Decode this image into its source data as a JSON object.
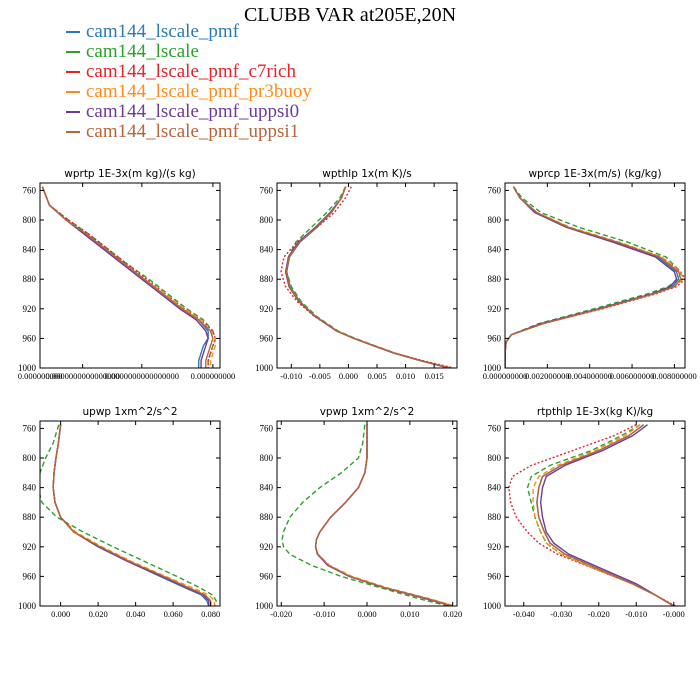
{
  "title": "CLUBB VAR at205E,20N",
  "legend": [
    {
      "label": "cam144_lscale_pmf",
      "color": "#2a7ab6",
      "dash": "solid"
    },
    {
      "label": "cam144_lscale",
      "color": "#2ca02c",
      "dash": "dashed"
    },
    {
      "label": "cam144_lscale_pmf_c7rich",
      "color": "#e3242b",
      "dash": "dotted"
    },
    {
      "label": "cam144_lscale_pmf_pr3buoy",
      "color": "#ff8c1a",
      "dash": "dashed"
    },
    {
      "label": "cam144_lscale_pmf_uppsi0",
      "color": "#6a3d9a",
      "dash": "solid"
    },
    {
      "label": "cam144_lscale_pmf_uppsi1",
      "color": "#b5653a",
      "dash": "solid"
    }
  ],
  "chart_data": [
    {
      "type": "line",
      "title": "wprtp  1E-3x(m kg)/(s kg)",
      "xlim": [
        -3e-10,
        7.3e-09
      ],
      "ylim": [
        1000,
        750
      ],
      "yticks": [
        760,
        800,
        840,
        880,
        920,
        960,
        1000
      ],
      "xticks": [
        {
          "v": -3e-10,
          "label": "0.000000000"
        },
        {
          "v": 1.5e-09,
          "label": "0.0000000000000000"
        },
        {
          "v": 4e-09,
          "label": "0.0000000000000000"
        },
        {
          "v": 7e-09,
          "label": "0.000000000"
        }
      ],
      "y": [
        755,
        780,
        800,
        820,
        840,
        860,
        880,
        900,
        920,
        935,
        950,
        960,
        970,
        980,
        990,
        1000
      ],
      "series": [
        {
          "values": [
            -2e-10,
            1e-10,
            8e-10,
            1.7e-09,
            2.5e-09,
            3.3e-09,
            4.1e-09,
            4.9e-09,
            5.7e-09,
            6.4e-09,
            6.8e-09,
            6.8e-09,
            6.6e-09,
            6.5e-09,
            6.4e-09,
            6.4e-09
          ]
        },
        {
          "values": [
            -2e-10,
            1e-10,
            9e-10,
            1.8e-09,
            2.6e-09,
            3.4e-09,
            4.3e-09,
            5.1e-09,
            5.9e-09,
            6.6e-09,
            7e-09,
            7.1e-09,
            7e-09,
            6.9e-09,
            6.8e-09,
            6.8e-09
          ]
        },
        {
          "values": [
            -2e-10,
            1e-10,
            9e-10,
            1.8e-09,
            2.6e-09,
            3.4e-09,
            4.2e-09,
            5e-09,
            5.8e-09,
            6.5e-09,
            7e-09,
            7.1e-09,
            7e-09,
            6.9e-09,
            6.8e-09,
            6.8e-09
          ]
        },
        {
          "values": [
            -2e-10,
            1e-10,
            8e-10,
            1.7e-09,
            2.5e-09,
            3.3e-09,
            4.1e-09,
            5e-09,
            5.8e-09,
            6.5e-09,
            6.9e-09,
            7.1e-09,
            7.1e-09,
            7e-09,
            6.9e-09,
            6.9e-09
          ]
        },
        {
          "values": [
            -2e-10,
            1e-10,
            8e-10,
            1.6e-09,
            2.4e-09,
            3.2e-09,
            4e-09,
            4.8e-09,
            5.6e-09,
            6.3e-09,
            6.7e-09,
            6.8e-09,
            6.7e-09,
            6.6e-09,
            6.5e-09,
            6.5e-09
          ]
        },
        {
          "values": [
            -2e-10,
            1e-10,
            8e-10,
            1.7e-09,
            2.5e-09,
            3.3e-09,
            4.1e-09,
            4.9e-09,
            5.7e-09,
            6.4e-09,
            6.9e-09,
            7e-09,
            6.9e-09,
            6.8e-09,
            6.7e-09,
            6.7e-09
          ]
        }
      ]
    },
    {
      "type": "line",
      "title": "wpthlp  1x(m K)/s",
      "xlim": [
        -0.0125,
        0.019
      ],
      "ylim": [
        1000,
        750
      ],
      "yticks": [
        760,
        800,
        840,
        880,
        920,
        960,
        1000
      ],
      "xticks": [
        {
          "v": -0.01,
          "label": "-0.010"
        },
        {
          "v": -0.005,
          "label": "-0.005"
        },
        {
          "v": 0.0,
          "label": "0.000"
        },
        {
          "v": 0.005,
          "label": "0.005"
        },
        {
          "v": 0.01,
          "label": "0.010"
        },
        {
          "v": 0.015,
          "label": "0.015"
        }
      ],
      "y": [
        755,
        770,
        790,
        810,
        830,
        850,
        870,
        890,
        910,
        930,
        950,
        960,
        970,
        980,
        990,
        1000
      ],
      "series": [
        {
          "values": [
            -0.0005,
            -0.0012,
            -0.003,
            -0.0055,
            -0.0085,
            -0.0103,
            -0.0108,
            -0.0102,
            -0.0085,
            -0.0058,
            -0.002,
            0.001,
            0.0045,
            0.008,
            0.0125,
            0.0175
          ]
        },
        {
          "values": [
            -0.0005,
            -0.0015,
            -0.0038,
            -0.0065,
            -0.0092,
            -0.0105,
            -0.0108,
            -0.01,
            -0.0083,
            -0.0056,
            -0.0018,
            0.0012,
            0.0047,
            0.0082,
            0.0127,
            0.0178
          ]
        },
        {
          "values": [
            0.0005,
            -0.0005,
            -0.0025,
            -0.0055,
            -0.009,
            -0.0113,
            -0.0118,
            -0.011,
            -0.009,
            -0.006,
            -0.002,
            0.001,
            0.0045,
            0.0082,
            0.013,
            0.0185
          ]
        },
        {
          "values": [
            -0.0005,
            -0.0012,
            -0.003,
            -0.0057,
            -0.0087,
            -0.0104,
            -0.0109,
            -0.0103,
            -0.0086,
            -0.0058,
            -0.002,
            0.001,
            0.0045,
            0.0081,
            0.0127,
            0.018
          ]
        },
        {
          "values": [
            -0.0005,
            -0.0012,
            -0.0032,
            -0.0058,
            -0.0088,
            -0.0105,
            -0.011,
            -0.0104,
            -0.0087,
            -0.0059,
            -0.0021,
            0.0009,
            0.0044,
            0.008,
            0.0126,
            0.0177
          ]
        },
        {
          "values": [
            -0.0005,
            -0.0012,
            -0.003,
            -0.0056,
            -0.0086,
            -0.0104,
            -0.0109,
            -0.0103,
            -0.0086,
            -0.0058,
            -0.002,
            0.001,
            0.0045,
            0.0081,
            0.0126,
            0.0178
          ]
        }
      ]
    },
    {
      "type": "line",
      "title": "wprcp  1E-3x(m/s) (kg/kg)",
      "xlim": [
        -2e-07,
        0.0085
      ],
      "ylim": [
        1000,
        750
      ],
      "yticks": [
        760,
        800,
        840,
        880,
        920,
        960,
        1000
      ],
      "xticks": [
        {
          "v": 0.0,
          "label": "0.000000000"
        },
        {
          "v": 0.002,
          "label": "0.002000000"
        },
        {
          "v": 0.004,
          "label": "0.004000000"
        },
        {
          "v": 0.006,
          "label": "0.006000000"
        },
        {
          "v": 0.008,
          "label": "0.008000000"
        }
      ],
      "y": [
        755,
        770,
        790,
        810,
        830,
        850,
        870,
        880,
        890,
        900,
        920,
        940,
        955,
        965,
        980,
        1000
      ],
      "series": [
        {
          "values": [
            0.0004,
            0.0007,
            0.0015,
            0.003,
            0.0052,
            0.0072,
            0.0081,
            0.0082,
            0.0079,
            0.007,
            0.0045,
            0.0018,
            0.0003,
            5e-05,
            0.0,
            0.0
          ]
        },
        {
          "values": [
            0.0004,
            0.0008,
            0.0017,
            0.0035,
            0.0058,
            0.0076,
            0.0083,
            0.0082,
            0.0077,
            0.0067,
            0.0042,
            0.0016,
            0.0003,
            5e-05,
            0.0,
            0.0
          ]
        },
        {
          "values": [
            0.0004,
            0.0007,
            0.0015,
            0.003,
            0.0053,
            0.0074,
            0.0083,
            0.0085,
            0.0081,
            0.0071,
            0.0046,
            0.0018,
            0.0003,
            5e-05,
            0.0,
            0.0
          ]
        },
        {
          "values": [
            0.0004,
            0.0007,
            0.0015,
            0.0031,
            0.0054,
            0.0074,
            0.0083,
            0.0084,
            0.008,
            0.007,
            0.0045,
            0.0018,
            0.0003,
            5e-05,
            0.0,
            0.0
          ]
        },
        {
          "values": [
            0.0004,
            0.0007,
            0.0014,
            0.0029,
            0.0051,
            0.0071,
            0.008,
            0.0081,
            0.0078,
            0.0069,
            0.0044,
            0.0017,
            0.0003,
            5e-05,
            0.0,
            0.0
          ]
        },
        {
          "values": [
            0.0004,
            0.0007,
            0.0015,
            0.003,
            0.0053,
            0.0073,
            0.0082,
            0.0083,
            0.008,
            0.007,
            0.0045,
            0.0018,
            0.0003,
            5e-05,
            0.0,
            0.0
          ]
        }
      ]
    },
    {
      "type": "line",
      "title": "upwp  1xm^2/s^2",
      "xlim": [
        -0.011,
        0.085
      ],
      "ylim": [
        1000,
        750
      ],
      "yticks": [
        760,
        800,
        840,
        880,
        920,
        960,
        1000
      ],
      "xticks": [
        {
          "v": 0.0,
          "label": "0.000"
        },
        {
          "v": 0.02,
          "label": "0.020"
        },
        {
          "v": 0.04,
          "label": "0.040"
        },
        {
          "v": 0.06,
          "label": "0.060"
        },
        {
          "v": 0.08,
          "label": "0.080"
        }
      ],
      "y": [
        755,
        780,
        800,
        820,
        840,
        860,
        880,
        900,
        920,
        940,
        960,
        975,
        985,
        993,
        1000
      ],
      "series": [
        {
          "values": [
            0.0,
            -0.0012,
            -0.0025,
            -0.0035,
            -0.004,
            -0.003,
            0.0,
            0.007,
            0.02,
            0.036,
            0.053,
            0.066,
            0.075,
            0.078,
            0.079
          ]
        },
        {
          "values": [
            -0.001,
            -0.004,
            -0.008,
            -0.011,
            -0.012,
            -0.01,
            -0.002,
            0.012,
            0.028,
            0.045,
            0.062,
            0.074,
            0.081,
            0.083,
            0.082
          ]
        },
        {
          "values": [
            0.0,
            -0.0012,
            -0.0025,
            -0.0035,
            -0.004,
            -0.003,
            0.0,
            0.007,
            0.021,
            0.037,
            0.055,
            0.068,
            0.077,
            0.08,
            0.08
          ]
        },
        {
          "values": [
            0.0,
            -0.0012,
            -0.0025,
            -0.0035,
            -0.004,
            -0.003,
            0.0,
            0.008,
            0.022,
            0.038,
            0.056,
            0.07,
            0.079,
            0.082,
            0.082
          ]
        },
        {
          "values": [
            0.0,
            -0.0012,
            -0.0025,
            -0.0035,
            -0.004,
            -0.003,
            0.0,
            0.007,
            0.02,
            0.036,
            0.054,
            0.067,
            0.076,
            0.079,
            0.079
          ]
        },
        {
          "values": [
            0.0,
            -0.0012,
            -0.0025,
            -0.0035,
            -0.004,
            -0.003,
            0.0,
            0.007,
            0.021,
            0.037,
            0.055,
            0.068,
            0.077,
            0.08,
            0.08
          ]
        }
      ]
    },
    {
      "type": "line",
      "title": "vpwp  1xm^2/s^2",
      "xlim": [
        -0.021,
        0.021
      ],
      "ylim": [
        1000,
        750
      ],
      "yticks": [
        760,
        800,
        840,
        880,
        920,
        960,
        1000
      ],
      "xticks": [
        {
          "v": -0.02,
          "label": "-0.020"
        },
        {
          "v": -0.01,
          "label": "-0.010"
        },
        {
          "v": 0.0,
          "label": "0.000"
        },
        {
          "v": 0.01,
          "label": "0.010"
        },
        {
          "v": 0.02,
          "label": "0.020"
        }
      ],
      "y": [
        755,
        780,
        800,
        820,
        840,
        860,
        880,
        900,
        910,
        920,
        930,
        945,
        960,
        975,
        990,
        1000
      ],
      "series": [
        {
          "values": [
            0.0,
            0.0,
            0.0,
            -0.0005,
            -0.002,
            -0.005,
            -0.0085,
            -0.011,
            -0.0118,
            -0.012,
            -0.0115,
            -0.009,
            -0.004,
            0.004,
            0.014,
            0.02
          ]
        },
        {
          "values": [
            -0.0005,
            -0.001,
            -0.002,
            -0.006,
            -0.011,
            -0.015,
            -0.018,
            -0.0195,
            -0.0198,
            -0.0195,
            -0.018,
            -0.013,
            -0.006,
            0.003,
            0.012,
            0.019
          ]
        },
        {
          "values": [
            0.0,
            0.0,
            0.0,
            -0.0005,
            -0.002,
            -0.005,
            -0.0085,
            -0.011,
            -0.0118,
            -0.012,
            -0.0115,
            -0.009,
            -0.004,
            0.004,
            0.014,
            0.02
          ]
        },
        {
          "values": [
            0.0,
            0.0,
            0.0,
            -0.0005,
            -0.002,
            -0.005,
            -0.0085,
            -0.011,
            -0.0118,
            -0.012,
            -0.0114,
            -0.0088,
            -0.0035,
            0.0045,
            0.0145,
            0.0205
          ]
        },
        {
          "values": [
            0.0,
            0.0,
            0.0,
            -0.0005,
            -0.002,
            -0.005,
            -0.0085,
            -0.011,
            -0.0118,
            -0.012,
            -0.0116,
            -0.0092,
            -0.0042,
            0.0038,
            0.0135,
            0.0198
          ]
        },
        {
          "values": [
            0.0,
            0.0,
            0.0,
            -0.0005,
            -0.002,
            -0.005,
            -0.0085,
            -0.011,
            -0.0118,
            -0.012,
            -0.0115,
            -0.009,
            -0.004,
            0.004,
            0.014,
            0.02
          ]
        }
      ]
    },
    {
      "type": "line",
      "title": "rtpthlp  1E-3x(kg K)/kg",
      "xlim": [
        -0.045,
        0.003
      ],
      "ylim": [
        1000,
        750
      ],
      "yticks": [
        760,
        800,
        840,
        880,
        920,
        960,
        1000
      ],
      "xticks": [
        {
          "v": -0.04,
          "label": "-0.040"
        },
        {
          "v": -0.03,
          "label": "-0.030"
        },
        {
          "v": -0.02,
          "label": "-0.020"
        },
        {
          "v": -0.01,
          "label": "-0.010"
        },
        {
          "v": 0.0,
          "label": "-0.000"
        }
      ],
      "y": [
        755,
        770,
        790,
        810,
        825,
        840,
        860,
        880,
        900,
        915,
        930,
        950,
        970,
        985,
        1000
      ],
      "series": [
        {
          "values": [
            -0.008,
            -0.012,
            -0.02,
            -0.03,
            -0.035,
            -0.036,
            -0.0365,
            -0.036,
            -0.0345,
            -0.033,
            -0.029,
            -0.02,
            -0.011,
            -0.005,
            0.0
          ]
        },
        {
          "values": [
            -0.009,
            -0.014,
            -0.022,
            -0.033,
            -0.038,
            -0.039,
            -0.038,
            -0.037,
            -0.0355,
            -0.034,
            -0.03,
            -0.021,
            -0.011,
            -0.005,
            0.0
          ]
        },
        {
          "values": [
            -0.01,
            -0.016,
            -0.027,
            -0.038,
            -0.043,
            -0.044,
            -0.0435,
            -0.042,
            -0.039,
            -0.036,
            -0.031,
            -0.021,
            -0.011,
            -0.005,
            0.0005
          ]
        },
        {
          "values": [
            -0.009,
            -0.013,
            -0.021,
            -0.031,
            -0.036,
            -0.0375,
            -0.0375,
            -0.037,
            -0.0355,
            -0.034,
            -0.03,
            -0.021,
            -0.011,
            -0.005,
            0.0
          ]
        },
        {
          "values": [
            -0.007,
            -0.011,
            -0.019,
            -0.029,
            -0.034,
            -0.035,
            -0.0355,
            -0.035,
            -0.034,
            -0.032,
            -0.028,
            -0.019,
            -0.01,
            -0.005,
            0.0
          ]
        },
        {
          "values": [
            -0.008,
            -0.012,
            -0.02,
            -0.03,
            -0.035,
            -0.036,
            -0.0365,
            -0.036,
            -0.0345,
            -0.033,
            -0.029,
            -0.02,
            -0.011,
            -0.005,
            0.0
          ]
        }
      ]
    }
  ]
}
